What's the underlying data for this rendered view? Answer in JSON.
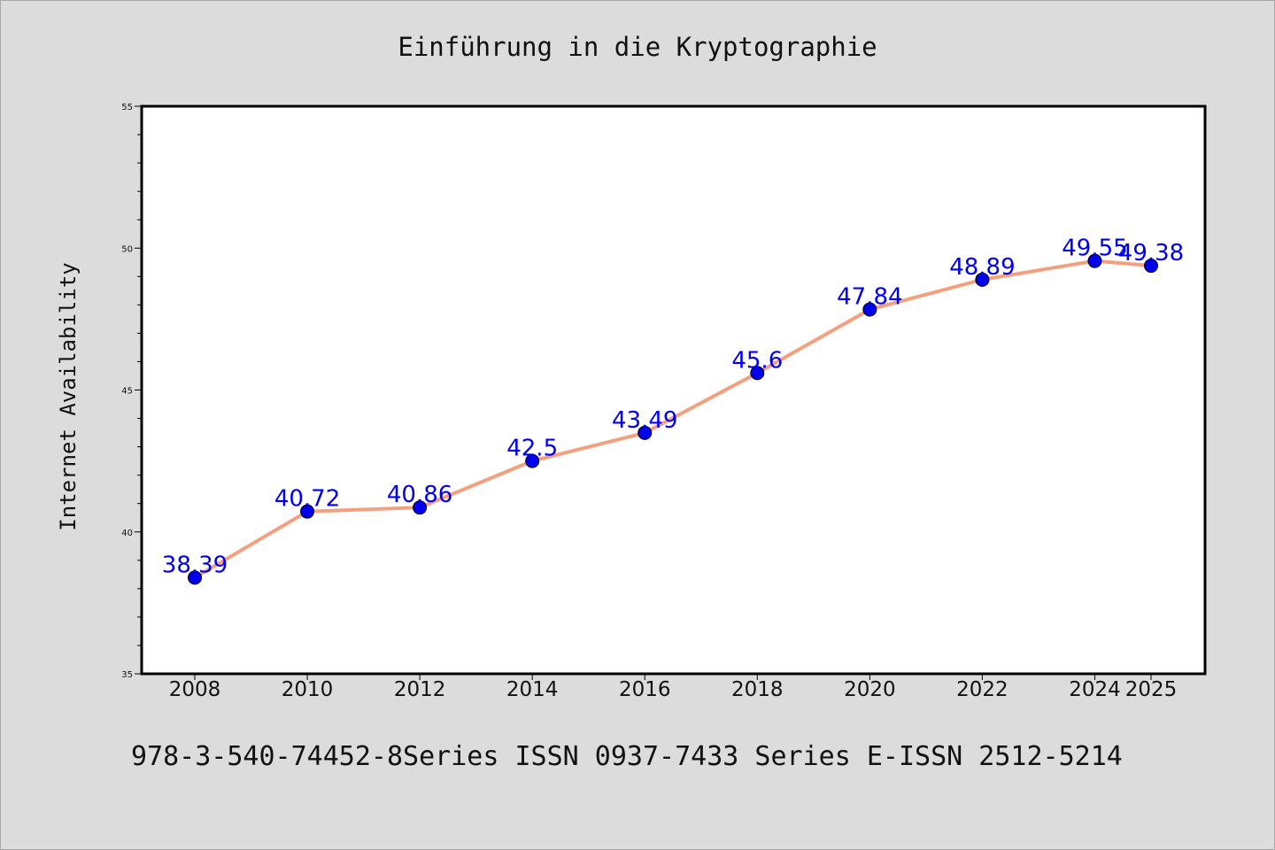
{
  "chart_data": {
    "type": "line",
    "title": "Einführung in die Kryptographie",
    "ylabel": "Internet Availability",
    "xlabel": "",
    "categories": [
      "2008",
      "2010",
      "2012",
      "2014",
      "2016",
      "2018",
      "2020",
      "2022",
      "2024",
      "2025"
    ],
    "series": [
      {
        "values": [
          38.39,
          40.72,
          40.86,
          42.5,
          43.49,
          45.6,
          47.84,
          48.89,
          49.55,
          49.38
        ]
      }
    ],
    "data_labels": [
      "38.39",
      "40.72",
      "40.86",
      "42.5",
      "43.49",
      "45.6",
      "47.84",
      "48.89",
      "49.55",
      "49.38"
    ],
    "ylim": [
      35,
      55
    ],
    "y_ticks": [
      "35",
      "40",
      "45",
      "50",
      "55"
    ],
    "grid": false,
    "legend": "none",
    "colors": {
      "line": "#f4a07e",
      "marker": "#0000ee",
      "label": "#0000ee",
      "background": "#dcdcdc",
      "plot_background": "#ffffff"
    }
  },
  "footer": {
    "text": "978-3-540-74452-8Series ISSN 0937-7433 Series E-ISSN 2512-5214"
  }
}
